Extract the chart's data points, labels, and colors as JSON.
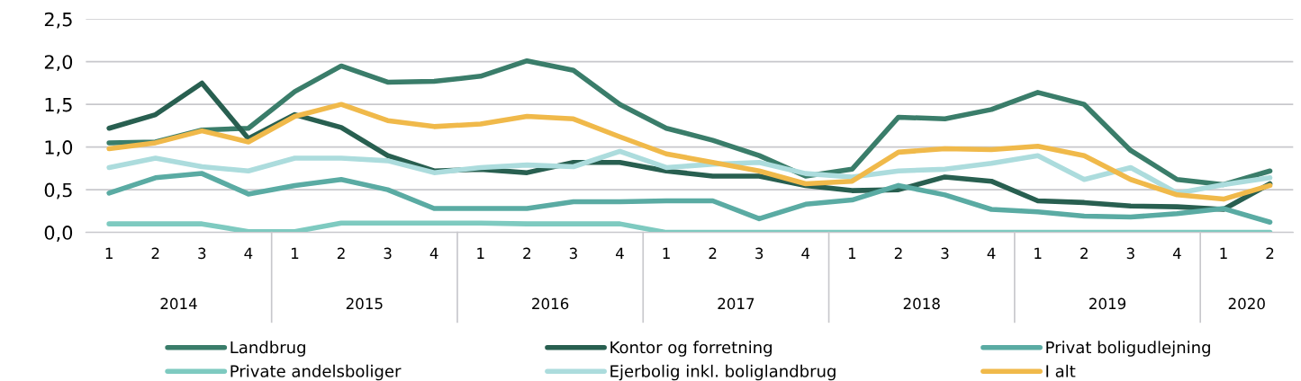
{
  "chart_data": {
    "type": "line",
    "categories": [
      "1",
      "2",
      "3",
      "4",
      "1",
      "2",
      "3",
      "4",
      "1",
      "2",
      "3",
      "4",
      "1",
      "2",
      "3",
      "4",
      "1",
      "2",
      "3",
      "4",
      "1",
      "2",
      "3",
      "4",
      "1",
      "2"
    ],
    "annotations": [
      "2014",
      "2015",
      "2016",
      "2017",
      "2018",
      "2019",
      "2020"
    ],
    "series": [
      {
        "name": "Landbrug",
        "color": "#3a7d6a",
        "values": [
          1.05,
          1.06,
          1.2,
          1.22,
          1.65,
          1.95,
          1.76,
          1.77,
          1.83,
          2.01,
          1.9,
          1.5,
          1.22,
          1.08,
          0.9,
          0.66,
          0.74,
          1.35,
          1.33,
          1.44,
          1.64,
          1.5,
          0.96,
          0.62,
          0.56,
          0.72
        ]
      },
      {
        "name": "Kontor og forretning",
        "color": "#285f50",
        "values": [
          1.22,
          1.38,
          1.75,
          1.1,
          1.38,
          1.23,
          0.9,
          0.72,
          0.74,
          0.7,
          0.82,
          0.82,
          0.72,
          0.66,
          0.66,
          0.55,
          0.49,
          0.5,
          0.65,
          0.6,
          0.37,
          0.35,
          0.31,
          0.3,
          0.27,
          0.57
        ]
      },
      {
        "name": "Privat boligudlejning",
        "color": "#5aaba3",
        "values": [
          0.46,
          0.64,
          0.69,
          0.45,
          0.55,
          0.62,
          0.5,
          0.28,
          0.28,
          0.28,
          0.36,
          0.36,
          0.37,
          0.37,
          0.16,
          0.33,
          0.38,
          0.55,
          0.44,
          0.27,
          0.24,
          0.19,
          0.18,
          0.22,
          0.28,
          0.12
        ]
      },
      {
        "name": "Private andelsboliger",
        "color": "#7ecac0",
        "values": [
          0.1,
          0.1,
          0.1,
          0.01,
          0.01,
          0.11,
          0.11,
          0.11,
          0.11,
          0.1,
          0.1,
          0.1,
          0.0,
          0.0,
          0.0,
          0.0,
          0.0,
          0.0,
          0.0,
          0.0,
          0.0,
          0.0,
          0.0,
          0.0,
          0.0,
          0.0
        ]
      },
      {
        "name": "Ejerbolig inkl. boliglandbrug",
        "color": "#acdcdd",
        "values": [
          0.76,
          0.87,
          0.77,
          0.72,
          0.87,
          0.87,
          0.84,
          0.7,
          0.76,
          0.79,
          0.77,
          0.95,
          0.76,
          0.8,
          0.82,
          0.69,
          0.65,
          0.72,
          0.74,
          0.81,
          0.9,
          0.62,
          0.76,
          0.46,
          0.56,
          0.64
        ]
      },
      {
        "name": "I alt",
        "color": "#f0b94a",
        "values": [
          0.98,
          1.05,
          1.19,
          1.06,
          1.36,
          1.5,
          1.31,
          1.24,
          1.27,
          1.36,
          1.33,
          1.12,
          0.92,
          0.82,
          0.72,
          0.57,
          0.6,
          0.94,
          0.98,
          0.97,
          1.01,
          0.9,
          0.62,
          0.44,
          0.39,
          0.55
        ]
      }
    ],
    "ylim": [
      0,
      2.5
    ],
    "yticks": [
      {
        "value": 0,
        "label": "0,0"
      },
      {
        "value": 0.5,
        "label": "0,5"
      },
      {
        "value": 1,
        "label": "1,0"
      },
      {
        "value": 1.5,
        "label": "1,5"
      },
      {
        "value": 2,
        "label": "2,0"
      },
      {
        "value": 2.5,
        "label": "2,5"
      }
    ],
    "grid": "y",
    "legend": "bottom",
    "marker": "none",
    "line_style": "solid"
  }
}
